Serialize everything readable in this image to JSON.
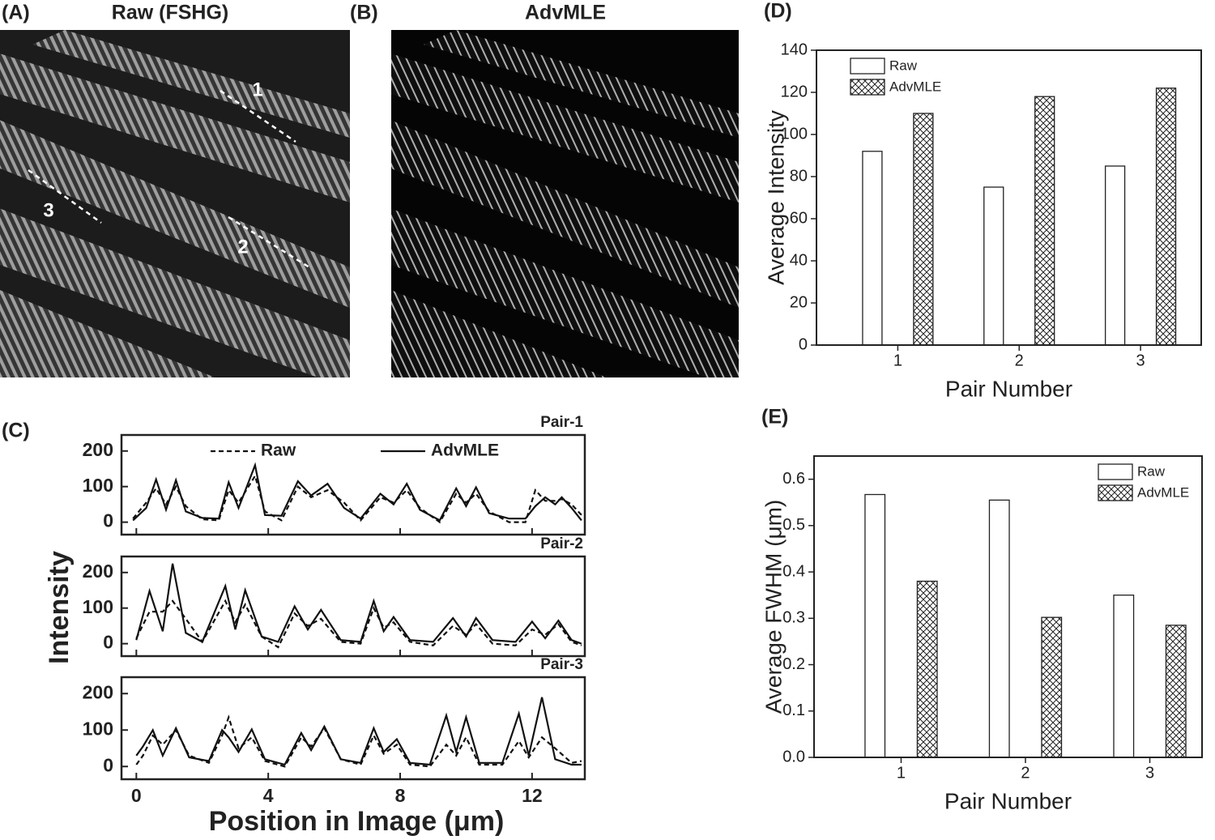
{
  "images": [
    {
      "panel": "(A)",
      "title": "Raw (FSHG)",
      "annotations": [
        "1",
        "2",
        "3"
      ]
    },
    {
      "panel": "(B)",
      "title": "AdvMLE"
    }
  ],
  "panel_c": {
    "label": "(C)",
    "ylabel": "Intensity",
    "xlabel": "Position in Image (μm)"
  },
  "chart_data": [
    {
      "type": "line",
      "title": "Pair-1",
      "legend": "top",
      "show_xtick_labels": false,
      "xlim": [
        -0.45,
        13.6
      ],
      "xticks": [
        0,
        4,
        8,
        12
      ],
      "ylim": [
        -35,
        245
      ],
      "yticks": [
        0,
        100,
        200
      ],
      "x": [
        -0.1,
        0.3,
        0.6,
        0.9,
        1.2,
        1.5,
        2.0,
        2.5,
        2.8,
        3.1,
        3.6,
        3.9,
        4.4,
        4.9,
        5.3,
        5.8,
        6.3,
        6.8,
        7.4,
        7.8,
        8.2,
        8.6,
        9.2,
        9.7,
        10.0,
        10.3,
        10.7,
        11.3,
        11.8,
        12.1,
        12.4,
        12.7,
        12.9,
        13.2,
        13.5
      ],
      "series": [
        {
          "name": "Raw",
          "color": "#111",
          "dash": true,
          "values": [
            10,
            55,
            95,
            50,
            100,
            45,
            8,
            5,
            90,
            55,
            130,
            30,
            5,
            100,
            70,
            90,
            55,
            5,
            70,
            55,
            90,
            40,
            0,
            80,
            55,
            80,
            30,
            0,
            0,
            90,
            60,
            60,
            65,
            50,
            20
          ]
        },
        {
          "name": "AdvMLE",
          "color": "#111",
          "dash": false,
          "values": [
            5,
            40,
            120,
            35,
            118,
            30,
            12,
            10,
            112,
            40,
            160,
            20,
            18,
            115,
            75,
            108,
            40,
            10,
            80,
            50,
            108,
            35,
            5,
            95,
            45,
            98,
            25,
            10,
            10,
            45,
            70,
            50,
            70,
            40,
            5
          ]
        }
      ]
    },
    {
      "type": "line",
      "title": "Pair-2",
      "show_xtick_labels": false,
      "xlim": [
        -0.45,
        13.6
      ],
      "xticks": [
        0,
        4,
        8,
        12
      ],
      "ylim": [
        -35,
        245
      ],
      "yticks": [
        0,
        100,
        200
      ],
      "x": [
        0,
        0.4,
        0.8,
        1.1,
        1.5,
        2.0,
        2.7,
        3.0,
        3.3,
        3.8,
        4.3,
        4.8,
        5.2,
        5.6,
        6.2,
        6.8,
        7.2,
        7.5,
        7.8,
        8.3,
        9.0,
        9.6,
        10.0,
        10.3,
        10.8,
        11.5,
        12.0,
        12.4,
        12.8,
        13.2,
        13.5
      ],
      "series": [
        {
          "color": "#111",
          "dash": true,
          "values": [
            15,
            90,
            90,
            120,
            70,
            5,
            120,
            60,
            110,
            20,
            -10,
            85,
            50,
            70,
            5,
            0,
            100,
            45,
            60,
            5,
            -5,
            50,
            25,
            55,
            0,
            -5,
            40,
            25,
            55,
            5,
            -5
          ]
        },
        {
          "color": "#111",
          "dash": false,
          "values": [
            10,
            148,
            35,
            225,
            30,
            5,
            162,
            40,
            150,
            20,
            5,
            105,
            40,
            95,
            10,
            5,
            120,
            35,
            75,
            10,
            5,
            72,
            20,
            72,
            10,
            5,
            62,
            15,
            65,
            10,
            0
          ]
        }
      ]
    },
    {
      "type": "line",
      "title": "Pair-3",
      "show_xtick_labels": true,
      "xlim": [
        -0.45,
        13.6
      ],
      "xticks": [
        0,
        4,
        8,
        12
      ],
      "ylim": [
        -35,
        245
      ],
      "yticks": [
        0,
        100,
        200
      ],
      "x": [
        0,
        0.2,
        0.5,
        0.8,
        1.2,
        1.6,
        2.2,
        2.6,
        2.8,
        3.1,
        3.5,
        3.9,
        4.5,
        5.0,
        5.3,
        5.7,
        6.2,
        6.8,
        7.2,
        7.5,
        7.9,
        8.3,
        8.9,
        9.4,
        9.7,
        10.0,
        10.4,
        11.1,
        11.6,
        11.9,
        12.3,
        12.7,
        13.2,
        13.5
      ],
      "series": [
        {
          "color": "#111",
          "dash": true,
          "values": [
            5,
            30,
            85,
            60,
            100,
            30,
            10,
            85,
            135,
            50,
            80,
            15,
            0,
            80,
            55,
            105,
            20,
            5,
            85,
            35,
            60,
            5,
            0,
            60,
            30,
            80,
            5,
            5,
            70,
            25,
            80,
            50,
            10,
            15
          ]
        },
        {
          "color": "#111",
          "dash": false,
          "values": [
            30,
            55,
            100,
            30,
            105,
            25,
            15,
            100,
            80,
            40,
            102,
            20,
            5,
            92,
            45,
            110,
            20,
            10,
            105,
            40,
            75,
            10,
            5,
            140,
            40,
            135,
            10,
            10,
            145,
            30,
            190,
            20,
            5,
            5
          ]
        }
      ]
    },
    {
      "type": "bar",
      "panel": "(D)",
      "xlabel": "Pair Number",
      "ylabel": "Average Intensity",
      "legend": "upper left",
      "x": [
        1,
        2,
        3
      ],
      "xlim": [
        0.33,
        3.5
      ],
      "xticks": [
        1,
        2,
        3
      ],
      "ylim": [
        0,
        140
      ],
      "yticks": [
        0,
        20,
        40,
        60,
        80,
        100,
        120,
        140
      ],
      "series": [
        {
          "name": "Raw",
          "color": "#fff",
          "pattern": "none",
          "values": [
            92,
            75,
            85
          ]
        },
        {
          "name": "AdvMLE",
          "color": "#fff",
          "pattern": "crosshatch",
          "values": [
            110,
            118,
            122
          ]
        }
      ]
    },
    {
      "type": "bar",
      "panel": "(E)",
      "xlabel": "Pair Number",
      "ylabel": "Average FWHM (μm)",
      "legend": "upper right",
      "x": [
        1,
        2,
        3
      ],
      "xlim": [
        0.3,
        3.42
      ],
      "xticks": [
        1,
        2,
        3
      ],
      "ylim": [
        0,
        0.65
      ],
      "yticks": [
        {
          "value": 0,
          "label": "0.0"
        },
        0.1,
        0.2,
        0.3,
        0.4,
        0.5,
        0.6
      ],
      "series": [
        {
          "name": "Raw",
          "color": "#fff",
          "pattern": "none",
          "values": [
            0.567,
            0.555,
            0.35
          ]
        },
        {
          "name": "AdvMLE",
          "color": "#fff",
          "pattern": "crosshatch",
          "values": [
            0.38,
            0.302,
            0.285
          ]
        }
      ]
    }
  ]
}
